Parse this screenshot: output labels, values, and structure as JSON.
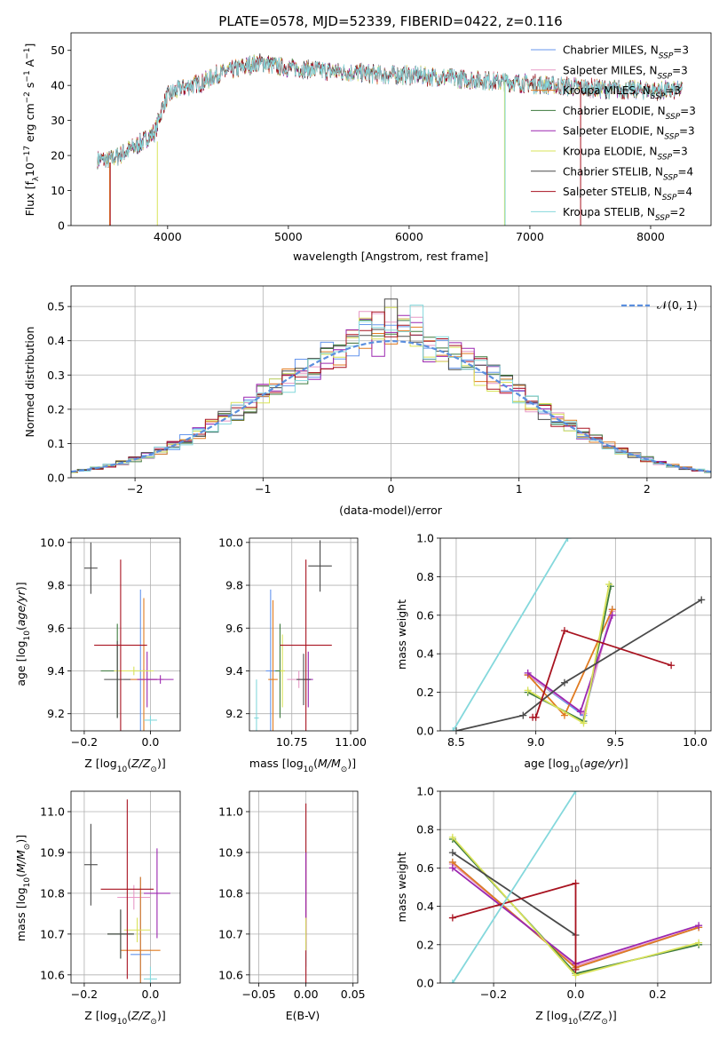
{
  "colors": {
    "c0": "#6495ed",
    "c1": "#e799c6",
    "c2": "#e07b21",
    "c3": "#3d7a3d",
    "c4": "#9b27b0",
    "c5": "#d9e35a",
    "c6": "#4a4a4a",
    "c7": "#a81320",
    "c8": "#84d8dc",
    "norm": "#5b8fde",
    "grid": "#b0b0b0"
  },
  "chart_data": [
    {
      "id": "spectrum",
      "type": "line",
      "title": "PLATE=0578, MJD=52339, FIBERID=0422, z=0.116",
      "xlabel": "wavelength [Angstrom, rest frame]",
      "ylabel_parts": {
        "pre": "Flux [f",
        "sub1": "λ",
        "mid": "10",
        "sup1": "−17",
        "post1": " erg cm",
        "sup2": "−2",
        "post2": " s",
        "sup3": "−1",
        "post3": " A",
        "sup4": "−1",
        "end": "]"
      },
      "xlim": [
        3200,
        8500
      ],
      "ylim": [
        0,
        55
      ],
      "xticks": [
        4000,
        5000,
        6000,
        7000,
        8000
      ],
      "yticks": [
        0,
        10,
        20,
        30,
        40,
        50
      ],
      "grid": false,
      "legend_position": "top-right",
      "series": [
        {
          "label": "Chabrier MILES, N",
          "sub": "SSP",
          "suffix": "=3"
        },
        {
          "label": "Salpeter MILES, N",
          "sub": "SSP",
          "suffix": "=3"
        },
        {
          "label": "Kroupa MILES, N",
          "sub": "SSP",
          "suffix": "=3"
        },
        {
          "label": "Chabrier ELODIE, N",
          "sub": "SSP",
          "suffix": "=3"
        },
        {
          "label": "Salpeter ELODIE, N",
          "sub": "SSP",
          "suffix": "=3"
        },
        {
          "label": "Kroupa ELODIE, N",
          "sub": "SSP",
          "suffix": "=3"
        },
        {
          "label": "Chabrier STELIB, N",
          "sub": "SSP",
          "suffix": "=4"
        },
        {
          "label": "Salpeter STELIB, N",
          "sub": "SSP",
          "suffix": "=4"
        },
        {
          "label": "Kroupa STELIB, N",
          "sub": "SSP",
          "suffix": "=2"
        }
      ],
      "continuum": {
        "x": [
          3420,
          3500,
          3600,
          3700,
          3800,
          3900,
          3950,
          4000,
          4100,
          4200,
          4300,
          4400,
          4500,
          4600,
          4700,
          4800,
          4900,
          5000,
          5200,
          5400,
          5600,
          5800,
          6000,
          6200,
          6400,
          6600,
          6800,
          7000,
          7200,
          7400,
          7600,
          7800,
          8000,
          8260
        ],
        "y": [
          19,
          18.5,
          20,
          22,
          24,
          27,
          33,
          37,
          39,
          40,
          41,
          43,
          44,
          45,
          46,
          46.5,
          45.5,
          45,
          44.5,
          44,
          43.5,
          43,
          43,
          42.5,
          42,
          41.5,
          41,
          40.5,
          40,
          39.5,
          39,
          38.8,
          38.6,
          38.5
        ]
      },
      "spikes": [
        {
          "x": 3520,
          "top": 18,
          "series": 2
        },
        {
          "x": 3525,
          "top": 18,
          "series": 7
        },
        {
          "x": 3915,
          "top": 24,
          "series": 5
        },
        {
          "x": 6790,
          "top": 41,
          "series": 5
        },
        {
          "x": 6795,
          "top": 41,
          "series": 8
        },
        {
          "x": 7420,
          "top": 41,
          "series": 7
        }
      ]
    },
    {
      "id": "residuals",
      "type": "histogram",
      "xlabel": "(data-model)/error",
      "ylabel": "Normed distribution",
      "xlim": [
        -2.5,
        2.5
      ],
      "ylim": [
        0,
        0.56
      ],
      "xticks": [
        -2,
        -1,
        0,
        1,
        2
      ],
      "yticks": [
        0,
        0.1,
        0.2,
        0.3,
        0.4,
        0.5
      ],
      "grid": true,
      "bin_width": 0.1,
      "legend_position": "top-right",
      "legend_label": "𝒩(0, 1)"
    },
    {
      "id": "age_vs_Z",
      "type": "scatter",
      "xlabel_text": "Z [log",
      "xlabel_sub": "10",
      "xlabel_tail": "(Z/Z",
      "xlabel_sun": "⊙",
      "xlabel_end": ")]",
      "ylabel_text": "age  [log",
      "ylabel_sub": "10",
      "ylabel_tail": "(age/yr)]",
      "xlim": [
        -0.24,
        0.09
      ],
      "ylim": [
        9.12,
        10.02
      ],
      "xticks": [
        -0.2,
        0.0
      ],
      "yticks": [
        9.2,
        9.4,
        9.6,
        9.8,
        10.0
      ],
      "grid": true,
      "points": [
        {
          "x": -0.03,
          "y": 9.4,
          "xerr": 0.02,
          "yerr": 0.38,
          "series": 0
        },
        {
          "x": -0.02,
          "y": 9.36,
          "xerr": 0.06,
          "yerr": 0.05,
          "series": 1
        },
        {
          "x": -0.02,
          "y": 9.36,
          "xerr": 0.04,
          "yerr": 0.38,
          "series": 2
        },
        {
          "x": -0.1,
          "y": 9.4,
          "xerr": 0.05,
          "yerr": 0.22,
          "series": 3
        },
        {
          "x": -0.01,
          "y": 9.36,
          "xerr": 0.03,
          "yerr": 0.13,
          "series": 4
        },
        {
          "x": -0.05,
          "y": 9.4,
          "xerr": 0.06,
          "yerr": 0.02,
          "series": 5
        },
        {
          "x": -0.18,
          "y": 9.88,
          "xerr": 0.02,
          "yerr": 0.12,
          "series": 6
        },
        {
          "x": -0.1,
          "y": 9.36,
          "xerr": 0.04,
          "yerr": 0.18,
          "series": 6
        },
        {
          "x": -0.09,
          "y": 9.52,
          "xerr": 0.08,
          "yerr": 0.4,
          "series": 7
        },
        {
          "x": 0.03,
          "y": 9.36,
          "xerr": 0.04,
          "yerr": 0.02,
          "series": 4
        },
        {
          "x": 0.0,
          "y": 9.17,
          "xerr": 0.02,
          "yerr": 0.02,
          "series": 8
        }
      ]
    },
    {
      "id": "age_vs_mass",
      "type": "scatter",
      "xlabel_text": "mass [log",
      "xlabel_sub": "10",
      "xlabel_tail": "(M/M",
      "xlabel_sun": "⊙",
      "xlabel_end": ")]",
      "xlim": [
        10.57,
        11.03
      ],
      "ylim": [
        9.12,
        10.02
      ],
      "xticks": [
        10.75,
        11.0
      ],
      "yticks": [
        9.2,
        9.4,
        9.6,
        9.8,
        10.0
      ],
      "grid": true,
      "points": [
        {
          "x": 10.66,
          "y": 9.4,
          "xerr": 0.02,
          "yerr": 0.38,
          "series": 0
        },
        {
          "x": 10.78,
          "y": 9.36,
          "xerr": 0.05,
          "yerr": 0.04,
          "series": 1
        },
        {
          "x": 10.67,
          "y": 9.36,
          "xerr": 0.02,
          "yerr": 0.37,
          "series": 2
        },
        {
          "x": 10.7,
          "y": 9.4,
          "xerr": 0.02,
          "yerr": 0.22,
          "series": 3
        },
        {
          "x": 10.82,
          "y": 9.36,
          "xerr": 0.02,
          "yerr": 0.13,
          "series": 4
        },
        {
          "x": 10.71,
          "y": 9.4,
          "xerr": 0.01,
          "yerr": 0.17,
          "series": 5
        },
        {
          "x": 10.87,
          "y": 9.89,
          "xerr": 0.05,
          "yerr": 0.12,
          "series": 6
        },
        {
          "x": 10.8,
          "y": 9.36,
          "xerr": 0.03,
          "yerr": 0.12,
          "series": 6
        },
        {
          "x": 10.81,
          "y": 9.52,
          "xerr": 0.11,
          "yerr": 0.4,
          "series": 7
        },
        {
          "x": 10.6,
          "y": 9.18,
          "xerr": 0.01,
          "yerr": 0.18,
          "series": 8
        }
      ]
    },
    {
      "id": "massweight_vs_age",
      "type": "line",
      "xlabel_text": "age  [log",
      "xlabel_sub": "10",
      "xlabel_tail": "(age/yr)]",
      "ylabel": "mass weight",
      "xlim": [
        8.4,
        10.1
      ],
      "ylim": [
        0,
        1.0
      ],
      "xticks": [
        8.5,
        9.0,
        9.5,
        10.0
      ],
      "yticks": [
        0.0,
        0.2,
        0.4,
        0.6,
        0.8,
        1.0
      ],
      "grid": true,
      "series": [
        {
          "series": 0,
          "x": [
            8.95,
            9.3,
            9.48
          ],
          "y": [
            0.29,
            0.08,
            0.63
          ]
        },
        {
          "series": 1,
          "x": [
            8.95,
            9.3,
            9.48
          ],
          "y": [
            0.29,
            0.09,
            0.62
          ]
        },
        {
          "series": 2,
          "x": [
            8.95,
            9.18,
            9.48
          ],
          "y": [
            0.29,
            0.08,
            0.63
          ]
        },
        {
          "series": 3,
          "x": [
            8.95,
            9.3,
            9.47
          ],
          "y": [
            0.2,
            0.05,
            0.75
          ]
        },
        {
          "series": 4,
          "x": [
            8.95,
            9.28,
            9.48
          ],
          "y": [
            0.3,
            0.1,
            0.6
          ]
        },
        {
          "series": 5,
          "x": [
            8.95,
            9.3,
            9.46
          ],
          "y": [
            0.21,
            0.04,
            0.76
          ]
        },
        {
          "series": 6,
          "x": [
            8.5,
            8.92,
            9.18,
            10.04
          ],
          "y": [
            0.0,
            0.08,
            0.25,
            0.68
          ]
        },
        {
          "series": 7,
          "x": [
            8.98,
            9.0,
            9.18,
            9.85
          ],
          "y": [
            0.07,
            0.07,
            0.52,
            0.34
          ]
        },
        {
          "series": 8,
          "x": [
            8.48,
            9.2
          ],
          "y": [
            0.0,
            1.0
          ]
        }
      ]
    },
    {
      "id": "mass_vs_Z",
      "type": "scatter",
      "xlabel_text": "Z [log",
      "xlabel_sub": "10",
      "xlabel_tail": "(Z/Z",
      "xlabel_sun": "⊙",
      "xlabel_end": ")]",
      "ylabel_text": "mass [log",
      "ylabel_sub": "10",
      "ylabel_tail": "(M/M",
      "ylabel_sun": "⊙",
      "ylabel_end": ")]",
      "xlim": [
        -0.24,
        0.09
      ],
      "ylim": [
        10.58,
        11.05
      ],
      "xticks": [
        -0.2,
        0.0
      ],
      "yticks": [
        10.6,
        10.7,
        10.8,
        10.9,
        11.0
      ],
      "grid": true,
      "points": [
        {
          "x": -0.03,
          "y": 10.65,
          "xerr": 0.03,
          "yerr": 0.19,
          "series": 0
        },
        {
          "x": -0.05,
          "y": 10.79,
          "xerr": 0.05,
          "yerr": 0.03,
          "series": 1
        },
        {
          "x": -0.03,
          "y": 10.66,
          "xerr": 0.06,
          "yerr": 0.18,
          "series": 2
        },
        {
          "x": -0.09,
          "y": 10.7,
          "xerr": 0.04,
          "yerr": 0.06,
          "series": 3
        },
        {
          "x": 0.02,
          "y": 10.8,
          "xerr": 0.04,
          "yerr": 0.11,
          "series": 4
        },
        {
          "x": -0.04,
          "y": 10.71,
          "xerr": 0.04,
          "yerr": 0.03,
          "series": 5
        },
        {
          "x": -0.18,
          "y": 10.87,
          "xerr": 0.02,
          "yerr": 0.1,
          "series": 6
        },
        {
          "x": -0.09,
          "y": 10.7,
          "xerr": 0.04,
          "yerr": 0.06,
          "series": 6
        },
        {
          "x": -0.07,
          "y": 10.81,
          "xerr": 0.08,
          "yerr": 0.22,
          "series": 7
        },
        {
          "x": 0.0,
          "y": 10.59,
          "xerr": 0.02,
          "yerr": 0.03,
          "series": 8
        }
      ]
    },
    {
      "id": "mass_vs_ebv",
      "type": "scatter",
      "xlabel": "E(B-V)",
      "xlim": [
        -0.06,
        0.055
      ],
      "ylim": [
        10.58,
        11.05
      ],
      "xticks": [
        -0.05,
        0.0,
        0.05
      ],
      "yticks": [
        10.6,
        10.7,
        10.8,
        10.9,
        11.0
      ],
      "grid": true,
      "points": [
        {
          "x": 0.0,
          "y": 10.65,
          "xerr": 0,
          "yerr": 0.03,
          "series": 8
        },
        {
          "x": 0.0,
          "y": 10.8,
          "xerr": 0,
          "yerr": 0.22,
          "series": 7
        },
        {
          "x": 0.0,
          "y": 10.78,
          "xerr": 0,
          "yerr": 0.12,
          "series": 4
        },
        {
          "x": 0.0,
          "y": 10.7,
          "xerr": 0,
          "yerr": 0.04,
          "series": 5
        }
      ]
    },
    {
      "id": "massweight_vs_Z",
      "type": "line",
      "xlabel_text": "Z [log",
      "xlabel_sub": "10",
      "xlabel_tail": "(Z/Z",
      "xlabel_sun": "⊙",
      "xlabel_end": ")]",
      "ylabel": "mass weight",
      "xlim": [
        -0.33,
        0.33
      ],
      "ylim": [
        0,
        1.0
      ],
      "xticks": [
        -0.2,
        0.0,
        0.2
      ],
      "yticks": [
        0.0,
        0.2,
        0.4,
        0.6,
        0.8,
        1.0
      ],
      "grid": true,
      "series": [
        {
          "series": 0,
          "x": [
            -0.3,
            0.0,
            0.3
          ],
          "y": [
            0.63,
            0.08,
            0.29
          ]
        },
        {
          "series": 1,
          "x": [
            -0.3,
            0.0,
            0.3
          ],
          "y": [
            0.62,
            0.09,
            0.29
          ]
        },
        {
          "series": 2,
          "x": [
            -0.3,
            0.0,
            0.3
          ],
          "y": [
            0.63,
            0.08,
            0.29
          ]
        },
        {
          "series": 3,
          "x": [
            -0.3,
            0.0,
            0.3
          ],
          "y": [
            0.75,
            0.05,
            0.2
          ]
        },
        {
          "series": 4,
          "x": [
            -0.3,
            0.0,
            0.3
          ],
          "y": [
            0.6,
            0.1,
            0.3
          ]
        },
        {
          "series": 5,
          "x": [
            -0.3,
            0.0,
            0.3
          ],
          "y": [
            0.76,
            0.04,
            0.21
          ]
        },
        {
          "series": 6,
          "x": [
            -0.3,
            0.0
          ],
          "y": [
            0.68,
            0.25
          ]
        },
        {
          "series": 7,
          "x": [
            -0.3,
            0.0,
            0.0
          ],
          "y": [
            0.34,
            0.52,
            0.07
          ]
        },
        {
          "series": 8,
          "x": [
            -0.3,
            0.0
          ],
          "y": [
            0.0,
            1.0
          ]
        }
      ]
    }
  ]
}
